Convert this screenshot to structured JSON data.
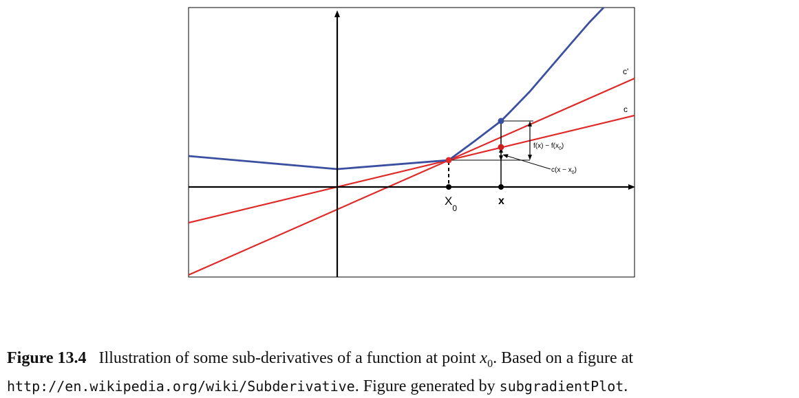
{
  "figure": {
    "labels": {
      "x0_main": "X",
      "x0_sub": "0",
      "x": "x",
      "c_prime": "c'",
      "c": "c",
      "diff_main": "f(x) − f(x",
      "diff_sub": "0",
      "diff_close": ")",
      "cx_main": "c(x − x",
      "cx_sub": "0",
      "cx_close": ")"
    },
    "colors": {
      "function": "#3b4fa0",
      "subgradient": "#e02a2a",
      "axes": "#000000"
    }
  },
  "chart_data": {
    "type": "line",
    "grid": false,
    "x_axis_ticks": [
      "X0",
      "x"
    ],
    "series": [
      {
        "role": "function f",
        "color": "#3b4fa0"
      },
      {
        "name": "c'",
        "role": "steeper subgradient line",
        "color": "#e02a2a"
      },
      {
        "name": "c",
        "role": "shallower subgradient line",
        "color": "#e02a2a"
      }
    ]
  },
  "caption": {
    "label": "Figure 13.4",
    "text1": "Illustration of some sub-derivatives of a function at point ",
    "math_var": "x",
    "math_sub": "0",
    "text2": ". Based on a figure at ",
    "url": "http://en.wikipedia.org/wiki/Subderivative",
    "text3": ". Figure generated by ",
    "code": "subgradientPlot",
    "text4": "."
  }
}
